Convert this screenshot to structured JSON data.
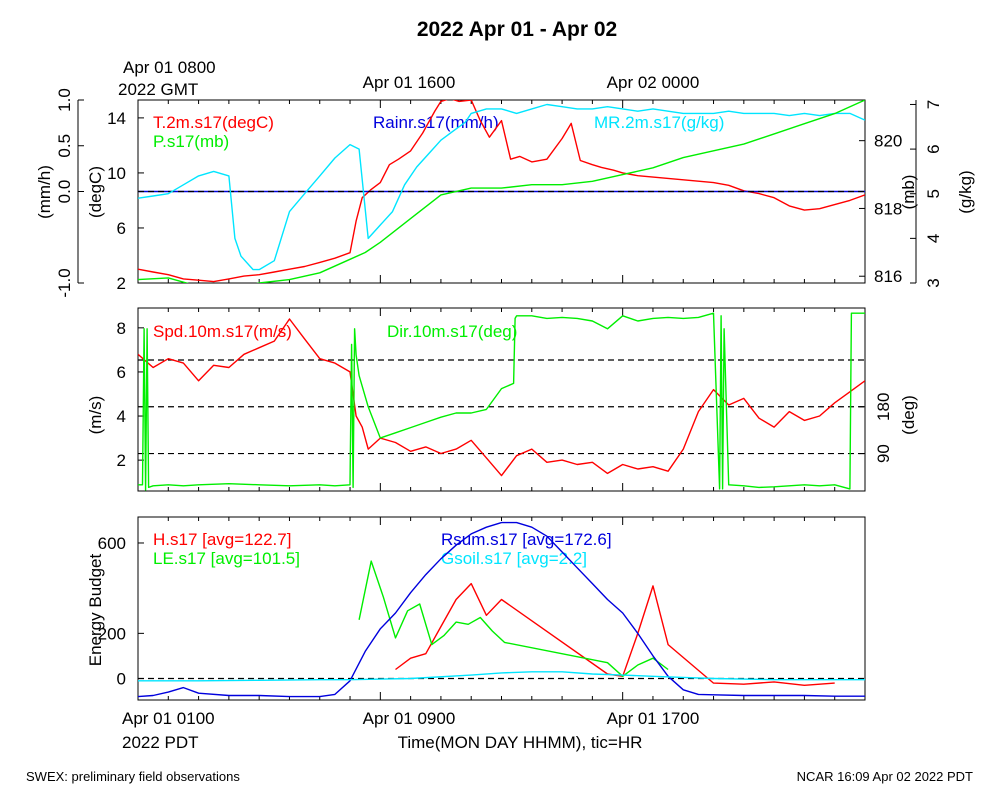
{
  "title": "2022 Apr 01 - Apr 02",
  "footer_left": "SWEX: preliminary field observations",
  "footer_right": "NCAR 16:09 Apr 02 2022 PDT",
  "top_axis": {
    "first_label_line1": "Apr 01 0800",
    "first_label_line2": "2022 GMT",
    "labels": [
      "Apr 01 1600",
      "Apr 02 0000"
    ]
  },
  "bottom_axis": {
    "first_label_line1": "Apr 01 0100",
    "first_label_line2": "2022 PDT",
    "labels": [
      "Apr 01 0900",
      "Apr 01 1700"
    ],
    "xlabel": "Time(MON DAY HHMM), tic=HR"
  },
  "colors": {
    "red": "#ff0000",
    "green": "#00ee00",
    "blue": "#0000dd",
    "cyan": "#00e5ff",
    "black": "#000000"
  },
  "chart_data": [
    {
      "type": "line",
      "panel": "met",
      "x_range_hours": [
        1,
        25
      ],
      "axes": {
        "rain": {
          "label": "(mm/h)",
          "range": [
            -1.0,
            1.0
          ],
          "ticks": [
            "-1.0",
            "0.0",
            "0.5",
            "1.0"
          ],
          "tick_values": [
            -1.0,
            0.0,
            0.5,
            1.0
          ]
        },
        "temp": {
          "label": "(degC)",
          "range": [
            2,
            15.3
          ],
          "ticks": [
            "2",
            "6",
            "10",
            "14"
          ],
          "tick_values": [
            2,
            6,
            10,
            14
          ]
        },
        "pres": {
          "label": "(mb)",
          "range": [
            815.8,
            821.2
          ],
          "ticks": [
            "816",
            "818",
            "820"
          ],
          "tick_values": [
            816,
            818,
            820
          ]
        },
        "mr": {
          "label": "(g/kg)",
          "range": [
            3,
            7.1
          ],
          "ticks": [
            "3",
            "4",
            "5",
            "6",
            "7"
          ],
          "tick_values": [
            3,
            4,
            5,
            6,
            7
          ]
        }
      },
      "series": [
        {
          "name": "T.2m.s17(degC)",
          "axis": "temp",
          "color": "red",
          "x": [
            1,
            1.5,
            2,
            2.5,
            3,
            3.5,
            4,
            4.5,
            5,
            5.5,
            6,
            6.5,
            7,
            7.5,
            8,
            8.2,
            8.4,
            8.7,
            9,
            9.3,
            9.6,
            10,
            10.4,
            10.8,
            11,
            11.3,
            11.6,
            12,
            12.3,
            12.6,
            13,
            13.3,
            13.6,
            14,
            14.5,
            15,
            15.3,
            15.6,
            16,
            16.3,
            16.7,
            17,
            17.5,
            18,
            18.5,
            19,
            19.5,
            20,
            20.5,
            21,
            21.5,
            22,
            22.5,
            23,
            23.5,
            24,
            24.5,
            25
          ],
          "y": [
            3.0,
            2.8,
            2.6,
            2.3,
            2.2,
            2.1,
            2.3,
            2.5,
            2.6,
            2.8,
            3.0,
            3.2,
            3.5,
            3.8,
            4.2,
            6.5,
            8.2,
            8.8,
            9.3,
            10.6,
            11.0,
            11.6,
            12.9,
            14.5,
            15.2,
            15.4,
            15.2,
            15.3,
            13.8,
            12.6,
            13.8,
            11.0,
            11.2,
            10.8,
            11.0,
            12.5,
            13.6,
            10.9,
            10.6,
            10.4,
            10.2,
            10.0,
            9.8,
            9.7,
            9.6,
            9.5,
            9.4,
            9.3,
            9.1,
            8.7,
            8.5,
            8.2,
            7.6,
            7.3,
            7.4,
            7.7,
            8.0,
            8.4
          ]
        },
        {
          "name": "Rainr.s17(mm/h)",
          "axis": "rain",
          "color": "blue",
          "x": [
            1,
            25
          ],
          "y": [
            0.0,
            0.0
          ]
        },
        {
          "name": "MR.2m.s17(g/kg)",
          "axis": "mr",
          "color": "cyan",
          "x": [
            1,
            1.5,
            2,
            2.5,
            3,
            3.5,
            4,
            4.2,
            4.4,
            4.8,
            5,
            5.5,
            6,
            6.5,
            7,
            7.5,
            8,
            8.3,
            8.6,
            9,
            9.4,
            9.8,
            10.2,
            10.6,
            11,
            11.4,
            11.8,
            12,
            12.5,
            13,
            13.5,
            14,
            14.5,
            15,
            15.5,
            16,
            16.5,
            17,
            17.5,
            18,
            18.5,
            19,
            19.5,
            20,
            20.5,
            21,
            21.5,
            22,
            22.5,
            23,
            23.5,
            24,
            24.5,
            25
          ],
          "y": [
            4.9,
            4.95,
            5.0,
            5.2,
            5.4,
            5.5,
            5.4,
            4.0,
            3.6,
            3.3,
            3.3,
            3.5,
            4.6,
            5.0,
            5.4,
            5.8,
            6.1,
            6.0,
            4.0,
            4.3,
            4.6,
            5.2,
            5.6,
            5.9,
            6.2,
            6.4,
            6.6,
            6.8,
            6.9,
            6.9,
            6.8,
            6.9,
            7.0,
            6.95,
            6.9,
            6.9,
            6.95,
            6.9,
            6.85,
            6.9,
            6.85,
            6.8,
            6.8,
            6.8,
            6.85,
            6.8,
            6.8,
            6.8,
            6.75,
            6.8,
            6.75,
            6.8,
            6.8,
            6.65
          ]
        },
        {
          "name": "P.s17(mb)",
          "axis": "pres",
          "color": "green",
          "x": [
            1,
            2,
            3,
            4,
            5,
            6,
            7,
            8,
            8.5,
            9,
            10,
            11,
            12,
            13,
            14,
            15,
            16,
            17,
            18,
            19,
            20,
            21,
            22,
            23,
            24,
            25
          ],
          "y": [
            815.9,
            815.95,
            815.7,
            815.6,
            815.8,
            815.9,
            816.1,
            816.5,
            816.7,
            817.0,
            817.7,
            818.4,
            818.6,
            818.6,
            818.7,
            818.7,
            818.8,
            819.0,
            819.2,
            819.5,
            819.7,
            819.9,
            820.2,
            820.5,
            820.8,
            821.2
          ]
        }
      ]
    },
    {
      "type": "line",
      "panel": "wind",
      "x_range_hours": [
        1,
        25
      ],
      "axes": {
        "spd": {
          "label": "(m/s)",
          "range": [
            0.6,
            8.9
          ],
          "ticks": [
            "2",
            "4",
            "6",
            "8"
          ],
          "tick_values": [
            2,
            4,
            6,
            8
          ]
        },
        "dir": {
          "label": "(deg)",
          "range": [
            18,
            370
          ],
          "ticks": [
            "90",
            "180"
          ],
          "tick_values": [
            90,
            180
          ]
        }
      },
      "reference_lines_deg": [
        90,
        180,
        270
      ],
      "series": [
        {
          "name": "Spd.10m.s17(m/s)",
          "axis": "spd",
          "color": "red",
          "x": [
            1,
            1.5,
            2,
            2.5,
            3,
            3.5,
            4,
            4.5,
            5,
            5.5,
            6,
            6.5,
            7,
            7.5,
            8,
            8.2,
            8.4,
            8.6,
            9,
            9.5,
            10,
            10.5,
            11,
            11.5,
            12,
            12.5,
            13,
            13.5,
            14,
            14.5,
            15,
            15.5,
            16,
            16.5,
            17,
            17.5,
            18,
            18.5,
            19,
            19.5,
            20,
            20.5,
            21,
            21.5,
            22,
            22.5,
            23,
            23.5,
            24,
            24.5,
            25
          ],
          "y": [
            6.8,
            6.2,
            6.6,
            6.4,
            5.6,
            6.3,
            6.2,
            6.8,
            7.1,
            7.4,
            8.4,
            7.5,
            6.6,
            6.4,
            6.0,
            4.0,
            3.5,
            2.5,
            3.0,
            2.8,
            2.4,
            2.6,
            2.3,
            2.5,
            2.9,
            2.1,
            1.3,
            2.2,
            2.5,
            1.9,
            2.0,
            1.8,
            1.9,
            1.4,
            1.8,
            1.6,
            1.7,
            1.5,
            2.5,
            4.2,
            5.2,
            4.5,
            4.8,
            3.9,
            3.5,
            4.2,
            3.8,
            4.0,
            4.6,
            5.1,
            5.6
          ]
        },
        {
          "name": "Dir.10m.s17(deg)",
          "axis": "dir",
          "color": "green",
          "x": [
            1,
            1.15,
            1.2,
            1.25,
            1.3,
            1.35,
            1.5,
            2,
            2.5,
            3,
            4,
            5,
            6,
            7,
            7.5,
            8,
            8.05,
            8.1,
            8.15,
            8.2,
            8.3,
            8.6,
            9,
            9.5,
            10,
            10.5,
            11,
            11.5,
            12,
            12.5,
            13,
            13.4,
            13.45,
            13.5,
            14,
            14.5,
            15,
            15.5,
            16,
            16.5,
            17,
            17.5,
            18,
            18.5,
            19,
            19.5,
            20,
            20.2,
            20.25,
            20.3,
            20.35,
            20.5,
            21,
            21.5,
            22,
            22.5,
            23,
            23.5,
            24,
            24.5,
            24.55,
            24.6,
            24.7,
            25
          ],
          "y": [
            30,
            30,
            330,
            20,
            330,
            25,
            28,
            30,
            28,
            30,
            32,
            30,
            28,
            30,
            28,
            30,
            300,
            25,
            330,
            280,
            240,
            180,
            120,
            130,
            140,
            150,
            160,
            168,
            168,
            175,
            215,
            225,
            350,
            355,
            355,
            350,
            352,
            350,
            345,
            330,
            355,
            345,
            350,
            352,
            350,
            352,
            360,
            22,
            355,
            22,
            330,
            30,
            28,
            25,
            26,
            28,
            30,
            28,
            30,
            22,
            360,
            360,
            360,
            360
          ]
        }
      ]
    },
    {
      "type": "line",
      "panel": "energy",
      "x_range_hours": [
        1,
        25
      ],
      "axes": {
        "energy": {
          "label": "Energy Budget",
          "range": [
            -95,
            715
          ],
          "ticks": [
            "0",
            "200",
            "600"
          ],
          "tick_values": [
            0,
            200,
            600
          ]
        }
      },
      "series": [
        {
          "name": "H.s17 [avg=122.7]",
          "color": "red",
          "x": [
            9.5,
            10,
            10.5,
            11,
            11.5,
            12,
            12.5,
            13,
            16.5,
            17,
            17.5,
            18,
            18.5,
            20,
            21,
            22,
            23,
            24
          ],
          "y": [
            40,
            90,
            110,
            230,
            350,
            420,
            280,
            350,
            20,
            10,
            200,
            410,
            150,
            -20,
            -25,
            -15,
            -30,
            -20
          ]
        },
        {
          "name": "LE.s17 [avg=101.5]",
          "color": "green",
          "x": [
            8.3,
            8.7,
            9.1,
            9.5,
            9.9,
            10.3,
            10.7,
            11.1,
            11.5,
            11.9,
            12.3,
            12.7,
            13.1,
            16.5,
            17,
            17.5,
            18,
            18.5
          ],
          "y": [
            260,
            520,
            360,
            180,
            300,
            330,
            150,
            190,
            250,
            240,
            270,
            210,
            160,
            70,
            10,
            60,
            90,
            40
          ]
        },
        {
          "name": "Rsum.s17 [avg=172.6]",
          "color": "blue",
          "x": [
            1,
            1.5,
            2,
            2.5,
            3,
            4,
            5,
            6,
            7,
            7.5,
            8,
            8.5,
            9,
            9.5,
            10,
            10.5,
            11,
            11.5,
            12,
            12.5,
            13,
            13.5,
            14,
            14.5,
            15,
            15.5,
            16,
            16.5,
            17,
            17.5,
            18,
            18.5,
            19,
            19.5,
            20,
            21,
            22,
            23,
            24,
            25
          ],
          "y": [
            -80,
            -75,
            -60,
            -40,
            -65,
            -75,
            -75,
            -80,
            -80,
            -70,
            -10,
            120,
            220,
            290,
            380,
            460,
            530,
            590,
            640,
            670,
            690,
            690,
            670,
            630,
            560,
            490,
            420,
            350,
            290,
            200,
            100,
            10,
            -50,
            -70,
            -72,
            -75,
            -75,
            -75,
            -78,
            -78
          ]
        },
        {
          "name": "Gsoil.s17 [avg=2.2]",
          "color": "cyan",
          "x": [
            1,
            3,
            5,
            7,
            8,
            10,
            12,
            13,
            14,
            15,
            16,
            17,
            18,
            19,
            20,
            22,
            24,
            25
          ],
          "y": [
            -10,
            -10,
            -8,
            -5,
            -5,
            0,
            15,
            25,
            30,
            30,
            20,
            15,
            10,
            5,
            0,
            -5,
            -5,
            -5
          ]
        }
      ],
      "reference_line": 0
    }
  ]
}
